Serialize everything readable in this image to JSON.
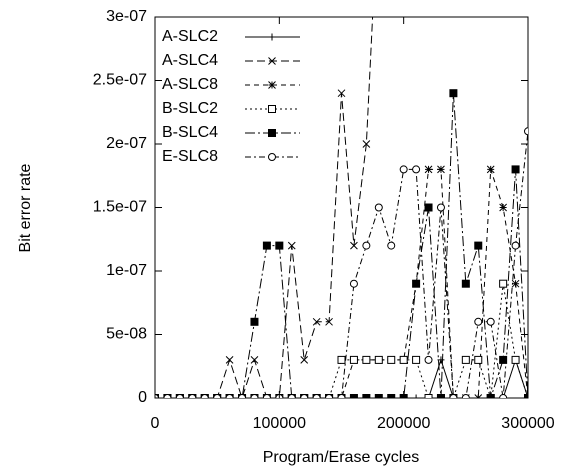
{
  "chart_data": {
    "type": "line",
    "xlabel": "Program/Erase cycles",
    "ylabel": "Bit error rate",
    "x": [
      0,
      10000,
      20000,
      30000,
      40000,
      50000,
      60000,
      70000,
      80000,
      90000,
      100000,
      110000,
      120000,
      130000,
      140000,
      150000,
      160000,
      170000,
      180000,
      190000,
      200000,
      210000,
      220000,
      230000,
      240000,
      250000,
      260000,
      270000,
      280000,
      290000,
      300000
    ],
    "xlim": [
      0,
      300000
    ],
    "xticks": [
      0,
      100000,
      200000,
      300000
    ],
    "ylim": [
      0,
      3e-07
    ],
    "yticks": [
      0,
      {
        "value": 5e-08,
        "label": "5e-08"
      },
      {
        "value": 1e-07,
        "label": "1e-07"
      },
      {
        "value": 1.5e-07,
        "label": "1.5e-07"
      },
      {
        "value": 2e-07,
        "label": "2e-07"
      },
      {
        "value": 2.5e-07,
        "label": "2.5e-07"
      },
      {
        "value": 3e-07,
        "label": "3e-07"
      }
    ],
    "legend": "upper left",
    "series": [
      {
        "name": "A-SLC2",
        "color": "#000000",
        "dash": "none",
        "marker": "plus",
        "values": [
          0,
          0,
          0,
          0,
          0,
          0,
          0,
          0,
          0,
          0,
          0,
          0,
          0,
          0,
          0,
          0,
          0,
          0,
          0,
          0,
          0,
          0,
          0,
          3e-08,
          0,
          0,
          0,
          0,
          0,
          3e-08,
          0
        ]
      },
      {
        "name": "A-SLC4",
        "color": "#000000",
        "dash": "8,4",
        "marker": "cross",
        "values": [
          0,
          0,
          0,
          0,
          0,
          0,
          3e-08,
          0,
          3e-08,
          0,
          0,
          1.2e-07,
          3e-08,
          6e-08,
          6e-08,
          2.4e-07,
          1.2e-07,
          2e-07,
          4e-07,
          null,
          null,
          null,
          null,
          null,
          null,
          null,
          null,
          null,
          null,
          null,
          null
        ]
      },
      {
        "name": "A-SLC8",
        "color": "#000000",
        "dash": "5,4",
        "marker": "star",
        "values": [
          0,
          0,
          0,
          0,
          0,
          0,
          0,
          0,
          0,
          0,
          0,
          0,
          0,
          0,
          0,
          0,
          3e-08,
          3e-08,
          3e-08,
          3e-08,
          3e-08,
          9e-08,
          1.8e-07,
          1.8e-07,
          0,
          0,
          0,
          1.8e-07,
          1.5e-07,
          9e-08,
          0
        ]
      },
      {
        "name": "B-SLC2",
        "color": "#000000",
        "dash": "2,3",
        "marker": "square",
        "values": [
          0,
          0,
          0,
          0,
          0,
          0,
          0,
          0,
          0,
          0,
          0,
          0,
          0,
          0,
          0,
          3e-08,
          3e-08,
          3e-08,
          3e-08,
          3e-08,
          3e-08,
          3e-08,
          0,
          0,
          0,
          3e-08,
          3e-08,
          0,
          9e-08,
          3e-08,
          0
        ]
      },
      {
        "name": "B-SLC4",
        "color": "#000000",
        "dash": "10,3,2,3",
        "marker": "filled-square",
        "values": [
          0,
          0,
          0,
          0,
          0,
          0,
          0,
          0,
          6e-08,
          1.2e-07,
          1.2e-07,
          0,
          0,
          0,
          0,
          0,
          0,
          0,
          0,
          0,
          0,
          9e-08,
          1.5e-07,
          0,
          2.4e-07,
          9e-08,
          1.2e-07,
          0,
          3e-08,
          1.8e-07,
          0
        ]
      },
      {
        "name": "E-SLC8",
        "color": "#000000",
        "dash": "6,3,2,3",
        "marker": "circle",
        "values": [
          0,
          0,
          0,
          0,
          0,
          0,
          0,
          0,
          0,
          0,
          0,
          0,
          0,
          0,
          0,
          0,
          9e-08,
          1.2e-07,
          1.5e-07,
          1.2e-07,
          1.8e-07,
          1.8e-07,
          3e-08,
          1.5e-07,
          0,
          0,
          6e-08,
          6e-08,
          0,
          1.2e-07,
          2.1e-07
        ]
      }
    ]
  }
}
